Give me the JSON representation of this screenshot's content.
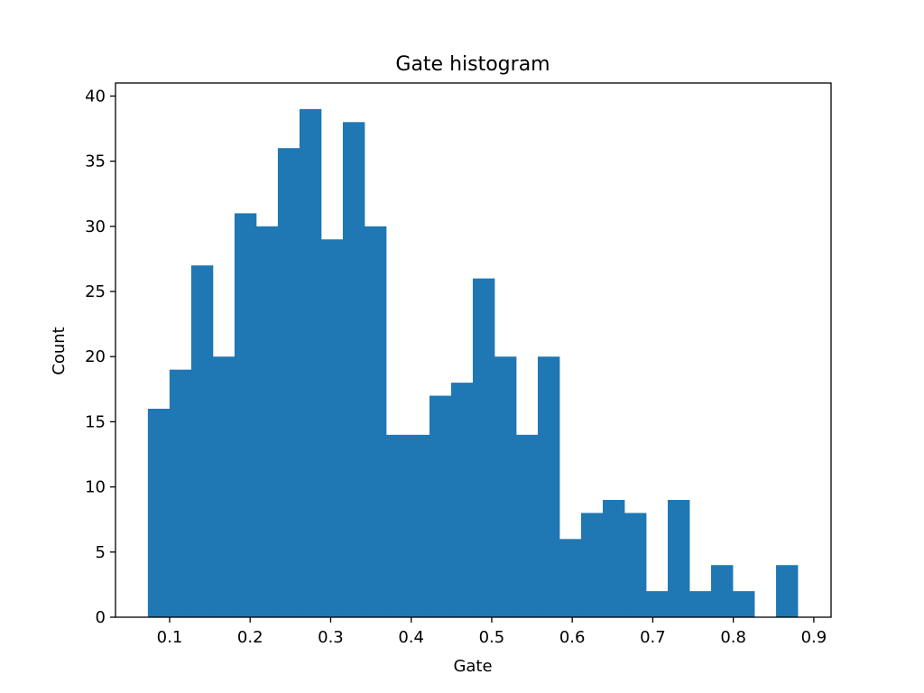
{
  "chart_data": {
    "type": "bar",
    "title": "Gate histogram",
    "xlabel": "Gate",
    "ylabel": "Count",
    "bin_start": 0.073,
    "bin_width": 0.0269,
    "values": [
      16,
      19,
      27,
      20,
      31,
      30,
      36,
      39,
      29,
      38,
      30,
      14,
      14,
      17,
      18,
      26,
      20,
      14,
      20,
      6,
      8,
      9,
      8,
      2,
      9,
      2,
      4,
      2,
      0,
      4
    ],
    "xlim": [
      0.0328,
      0.9214
    ],
    "ylim": [
      0,
      41
    ],
    "xticks": [
      "0.1",
      "0.2",
      "0.3",
      "0.4",
      "0.5",
      "0.6",
      "0.7",
      "0.8",
      "0.9"
    ],
    "xtick_values": [
      0.1,
      0.2,
      0.3,
      0.4,
      0.5,
      0.6,
      0.7,
      0.8,
      0.9
    ],
    "yticks": [
      "0",
      "5",
      "10",
      "15",
      "20",
      "25",
      "30",
      "35",
      "40"
    ],
    "ytick_values": [
      0,
      5,
      10,
      15,
      20,
      25,
      30,
      35,
      40
    ],
    "grid": false,
    "bar_color": "#1f77b4"
  }
}
